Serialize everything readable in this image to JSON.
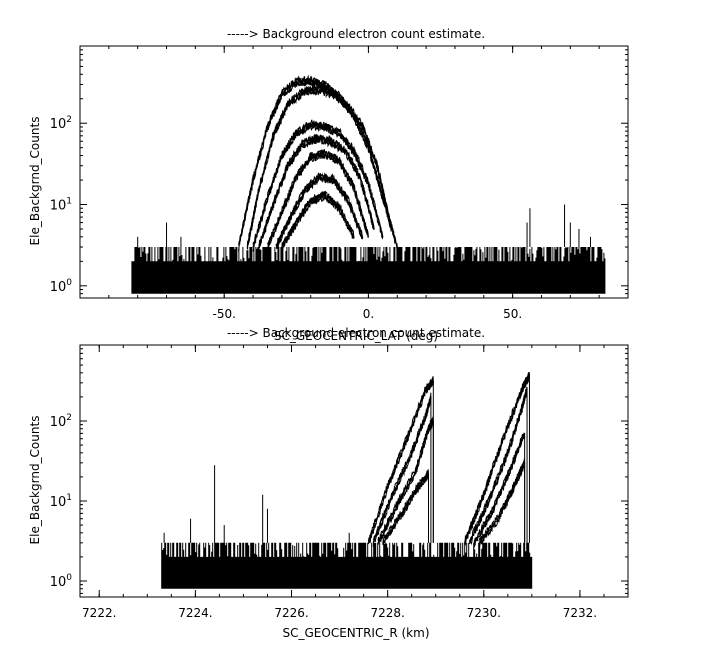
{
  "chart_data": [
    {
      "type": "line",
      "title": "-----> Background electron count estimate.",
      "xlabel": "SC_GEOCENTRIC_LAT (deg)",
      "ylabel": "Ele_Backgrnd_Counts",
      "xlim": [
        -100,
        90
      ],
      "ylim_log10": [
        -0.15,
        2.95
      ],
      "yscale": "log",
      "x_ticks": [
        -50,
        0,
        50
      ],
      "x_tick_labels": [
        "-50.",
        "0.",
        "50."
      ],
      "y_ticks": [
        1,
        10,
        100
      ],
      "y_tick_labels": [
        "10^0",
        "10^1",
        "10^2"
      ],
      "noise_floor": {
        "x_range": [
          -82,
          82
        ],
        "low": 0.8,
        "high": 3
      },
      "spikes": [
        {
          "x": -80,
          "y": 4
        },
        {
          "x": -70,
          "y": 6
        },
        {
          "x": -65,
          "y": 4
        },
        {
          "x": 55,
          "y": 6
        },
        {
          "x": 56,
          "y": 9
        },
        {
          "x": 68,
          "y": 10
        },
        {
          "x": 70,
          "y": 6
        },
        {
          "x": 73,
          "y": 5
        },
        {
          "x": 77,
          "y": 4
        }
      ],
      "series": [
        {
          "x": [
            -45,
            -40,
            -35,
            -30,
            -25,
            -20,
            -15,
            -10,
            -5,
            0,
            5,
            10
          ],
          "y": [
            3,
            20,
            90,
            230,
            320,
            330,
            290,
            210,
            120,
            50,
            12,
            3
          ]
        },
        {
          "x": [
            -42,
            -38,
            -33,
            -28,
            -22,
            -17,
            -12,
            -7,
            -2,
            3,
            8
          ],
          "y": [
            3,
            15,
            70,
            170,
            250,
            260,
            230,
            160,
            90,
            30,
            5
          ]
        },
        {
          "x": [
            -40,
            -35,
            -30,
            -25,
            -20,
            -15,
            -10,
            -5,
            0,
            5
          ],
          "y": [
            3,
            12,
            40,
            75,
            95,
            90,
            75,
            45,
            18,
            4
          ]
        },
        {
          "x": [
            -38,
            -33,
            -28,
            -23,
            -18,
            -13,
            -8,
            -3,
            2
          ],
          "y": [
            3,
            10,
            30,
            55,
            65,
            60,
            45,
            22,
            5
          ]
        },
        {
          "x": [
            -35,
            -30,
            -25,
            -20,
            -15,
            -10,
            -5,
            0
          ],
          "y": [
            3,
            8,
            22,
            38,
            42,
            34,
            16,
            4
          ]
        },
        {
          "x": [
            -32,
            -27,
            -22,
            -17,
            -12,
            -7,
            -2
          ],
          "y": [
            3,
            7,
            15,
            22,
            20,
            11,
            4
          ]
        },
        {
          "x": [
            -30,
            -25,
            -20,
            -15,
            -10,
            -5
          ],
          "y": [
            3,
            6,
            11,
            13,
            9,
            4
          ]
        }
      ]
    },
    {
      "type": "line",
      "title": "-----> Background electron count estimate.",
      "xlabel": "SC_GEOCENTRIC_R (km)",
      "ylabel": "Ele_Backgrnd_Counts",
      "xlim": [
        7221.6,
        7233.0
      ],
      "ylim_log10": [
        -0.2,
        2.95
      ],
      "yscale": "log",
      "x_ticks": [
        7222,
        7224,
        7226,
        7228,
        7230,
        7232
      ],
      "x_tick_labels": [
        "7222.",
        "7224.",
        "7226.",
        "7228.",
        "7230.",
        "7232."
      ],
      "y_ticks": [
        1,
        10,
        100
      ],
      "y_tick_labels": [
        "10^0",
        "10^1",
        "10^2"
      ],
      "noise_floor": {
        "x_range": [
          7223.3,
          7231.0
        ],
        "low": 0.8,
        "high": 3
      },
      "spikes": [
        {
          "x": 7223.35,
          "y": 4
        },
        {
          "x": 7223.9,
          "y": 6
        },
        {
          "x": 7224.4,
          "y": 28
        },
        {
          "x": 7224.6,
          "y": 5
        },
        {
          "x": 7225.4,
          "y": 12
        },
        {
          "x": 7225.5,
          "y": 8
        },
        {
          "x": 7227.2,
          "y": 4
        }
      ],
      "series": [
        {
          "x": [
            7227.6,
            7228.0,
            7228.4,
            7228.8,
            7228.95
          ],
          "y": [
            3,
            15,
            60,
            250,
            320
          ]
        },
        {
          "x": [
            7227.7,
            7228.1,
            7228.5,
            7228.8,
            7228.9
          ],
          "y": [
            3,
            12,
            40,
            120,
            200
          ]
        },
        {
          "x": [
            7227.8,
            7228.2,
            7228.6,
            7228.85,
            7228.95
          ],
          "y": [
            3,
            9,
            25,
            80,
            100
          ]
        },
        {
          "x": [
            7227.9,
            7228.3,
            7228.6,
            7228.85
          ],
          "y": [
            3,
            7,
            14,
            22
          ]
        },
        {
          "x": [
            7229.6,
            7230.0,
            7230.4,
            7230.8,
            7230.95
          ],
          "y": [
            3,
            12,
            60,
            250,
            380
          ]
        },
        {
          "x": [
            7229.7,
            7230.1,
            7230.5,
            7230.8,
            7230.9
          ],
          "y": [
            3,
            10,
            40,
            150,
            250
          ]
        },
        {
          "x": [
            7229.8,
            7230.2,
            7230.55,
            7230.85
          ],
          "y": [
            3,
            8,
            25,
            70
          ]
        },
        {
          "x": [
            7229.9,
            7230.3,
            7230.6,
            7230.85
          ],
          "y": [
            3,
            6,
            14,
            30
          ]
        }
      ]
    }
  ]
}
